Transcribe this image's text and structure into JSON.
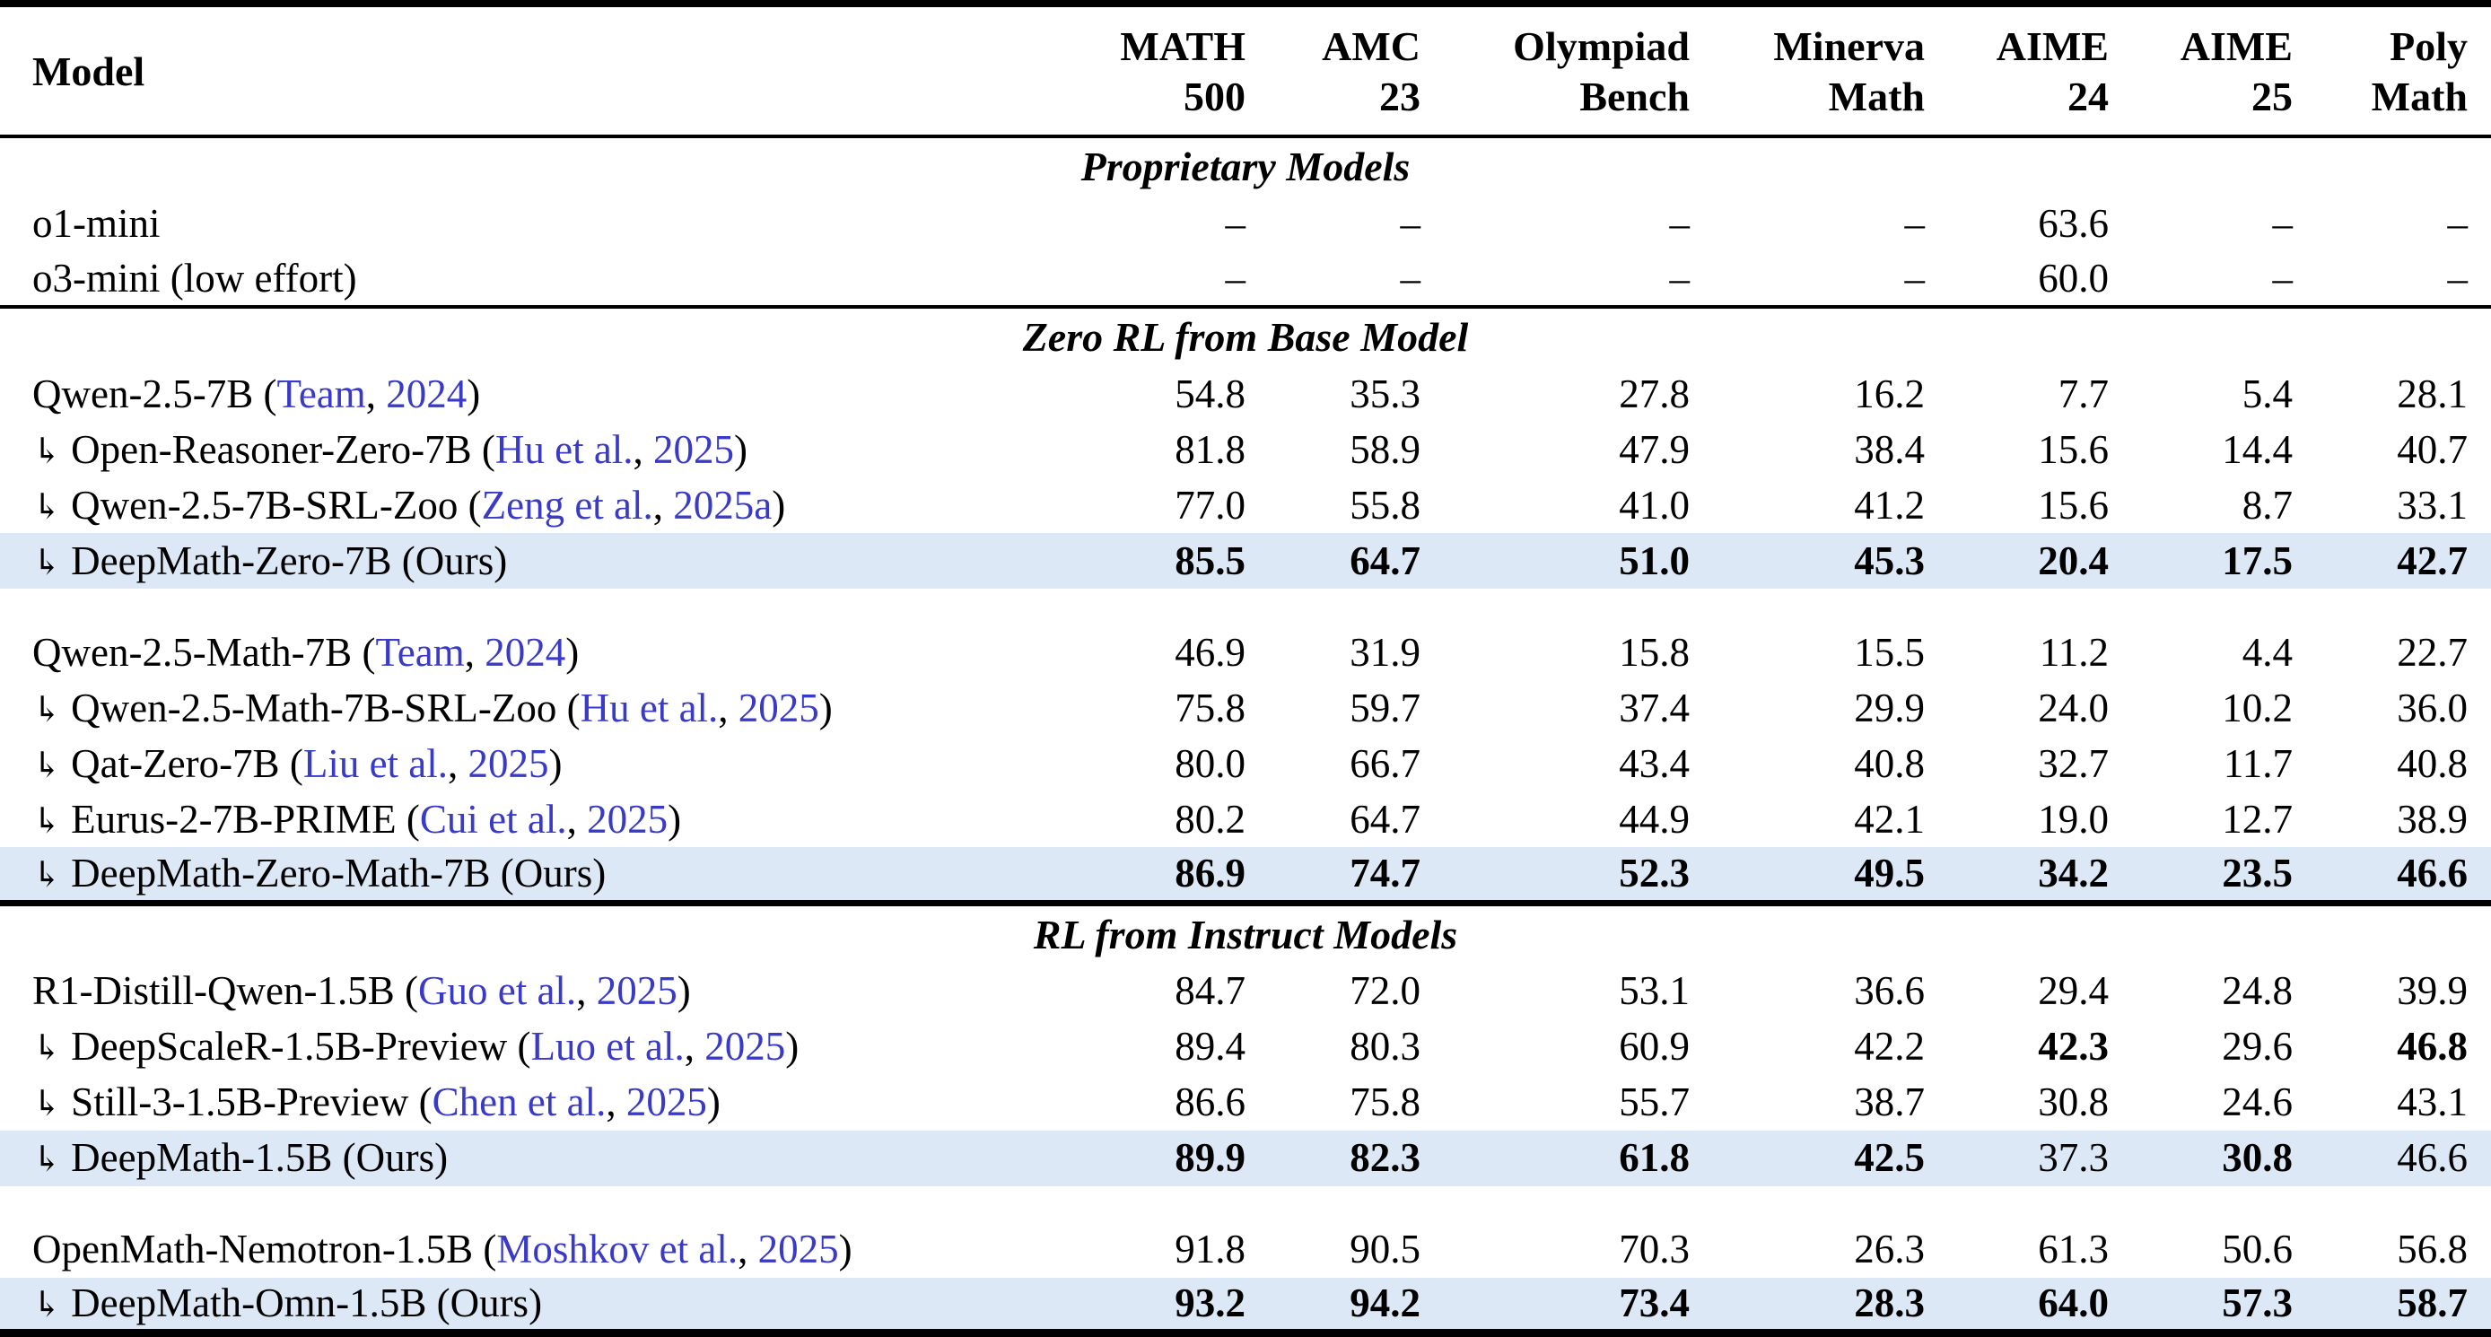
{
  "colors": {
    "highlight_row_bg": "#dce8f5",
    "citation_link": "#3a3ac8",
    "rule_color": "#000000"
  },
  "icons": {
    "branch_arrow": "↳"
  },
  "header": {
    "model_label": "Model",
    "benchmarks": [
      {
        "line1": "MATH",
        "line2": "500"
      },
      {
        "line1": "AMC",
        "line2": "23"
      },
      {
        "line1": "Olympiad",
        "line2": "Bench"
      },
      {
        "line1": "Minerva",
        "line2": "Math"
      },
      {
        "line1": "AIME",
        "line2": "24"
      },
      {
        "line1": "AIME",
        "line2": "25"
      },
      {
        "line1": "Poly",
        "line2": "Math"
      }
    ]
  },
  "sections": [
    {
      "title": "Proprietary Models",
      "groups": [
        {
          "rows": [
            {
              "model": "o1-mini",
              "arrow": false,
              "highlight": false,
              "scores": [
                "–",
                "–",
                "–",
                "–",
                "63.6",
                "–",
                "–"
              ],
              "bold": []
            },
            {
              "model": "o3-mini (low effort)",
              "arrow": false,
              "highlight": false,
              "scores": [
                "–",
                "–",
                "–",
                "–",
                "60.0",
                "–",
                "–"
              ],
              "bold": []
            }
          ]
        }
      ]
    },
    {
      "title": "Zero RL from Base Model",
      "groups": [
        {
          "rows": [
            {
              "model": "Qwen-2.5-7B",
              "cite": {
                "authors": "Team",
                "year": "2024"
              },
              "arrow": false,
              "highlight": false,
              "scores": [
                "54.8",
                "35.3",
                "27.8",
                "16.2",
                "7.7",
                "5.4",
                "28.1"
              ],
              "bold": []
            },
            {
              "model": "Open-Reasoner-Zero-7B",
              "cite": {
                "authors": "Hu et al.",
                "year": "2025"
              },
              "arrow": true,
              "highlight": false,
              "scores": [
                "81.8",
                "58.9",
                "47.9",
                "38.4",
                "15.6",
                "14.4",
                "40.7"
              ],
              "bold": []
            },
            {
              "model": "Qwen-2.5-7B-SRL-Zoo",
              "cite": {
                "authors": "Zeng et al.",
                "year": "2025a"
              },
              "arrow": true,
              "highlight": false,
              "scores": [
                "77.0",
                "55.8",
                "41.0",
                "41.2",
                "15.6",
                "8.7",
                "33.1"
              ],
              "bold": []
            },
            {
              "model": "DeepMath-Zero-7B",
              "suffix": "(Ours)",
              "arrow": true,
              "highlight": true,
              "scores": [
                "85.5",
                "64.7",
                "51.0",
                "45.3",
                "20.4",
                "17.5",
                "42.7"
              ],
              "bold": [
                0,
                1,
                2,
                3,
                4,
                5,
                6
              ]
            }
          ]
        },
        {
          "rows": [
            {
              "model": "Qwen-2.5-Math-7B",
              "cite": {
                "authors": "Team",
                "year": "2024"
              },
              "arrow": false,
              "highlight": false,
              "scores": [
                "46.9",
                "31.9",
                "15.8",
                "15.5",
                "11.2",
                "4.4",
                "22.7"
              ],
              "bold": []
            },
            {
              "model": "Qwen-2.5-Math-7B-SRL-Zoo",
              "cite": {
                "authors": "Hu et al.",
                "year": "2025"
              },
              "arrow": true,
              "highlight": false,
              "scores": [
                "75.8",
                "59.7",
                "37.4",
                "29.9",
                "24.0",
                "10.2",
                "36.0"
              ],
              "bold": []
            },
            {
              "model": "Qat-Zero-7B",
              "cite": {
                "authors": "Liu et al.",
                "year": "2025"
              },
              "arrow": true,
              "highlight": false,
              "scores": [
                "80.0",
                "66.7",
                "43.4",
                "40.8",
                "32.7",
                "11.7",
                "40.8"
              ],
              "bold": []
            },
            {
              "model": "Eurus-2-7B-PRIME",
              "cite": {
                "authors": "Cui et al.",
                "year": "2025"
              },
              "arrow": true,
              "highlight": false,
              "scores": [
                "80.2",
                "64.7",
                "44.9",
                "42.1",
                "19.0",
                "12.7",
                "38.9"
              ],
              "bold": []
            },
            {
              "model": "DeepMath-Zero-Math-7B",
              "suffix": "(Ours)",
              "arrow": true,
              "highlight": true,
              "scores": [
                "86.9",
                "74.7",
                "52.3",
                "49.5",
                "34.2",
                "23.5",
                "46.6"
              ],
              "bold": [
                0,
                1,
                2,
                3,
                4,
                5,
                6
              ]
            }
          ]
        }
      ]
    },
    {
      "title": "RL from Instruct Models",
      "groups": [
        {
          "rows": [
            {
              "model": "R1-Distill-Qwen-1.5B",
              "cite": {
                "authors": "Guo et al.",
                "year": "2025"
              },
              "arrow": false,
              "highlight": false,
              "scores": [
                "84.7",
                "72.0",
                "53.1",
                "36.6",
                "29.4",
                "24.8",
                "39.9"
              ],
              "bold": []
            },
            {
              "model": "DeepScaleR-1.5B-Preview",
              "cite": {
                "authors": "Luo et al.",
                "year": "2025"
              },
              "arrow": true,
              "highlight": false,
              "scores": [
                "89.4",
                "80.3",
                "60.9",
                "42.2",
                "42.3",
                "29.6",
                "46.8"
              ],
              "bold": [
                4,
                6
              ]
            },
            {
              "model": "Still-3-1.5B-Preview",
              "cite": {
                "authors": "Chen et al.",
                "year": "2025"
              },
              "arrow": true,
              "highlight": false,
              "scores": [
                "86.6",
                "75.8",
                "55.7",
                "38.7",
                "30.8",
                "24.6",
                "43.1"
              ],
              "bold": []
            },
            {
              "model": "DeepMath-1.5B",
              "suffix": "(Ours)",
              "arrow": true,
              "highlight": true,
              "scores": [
                "89.9",
                "82.3",
                "61.8",
                "42.5",
                "37.3",
                "30.8",
                "46.6"
              ],
              "bold": [
                0,
                1,
                2,
                3,
                5
              ]
            }
          ]
        },
        {
          "rows": [
            {
              "model": "OpenMath-Nemotron-1.5B",
              "cite": {
                "authors": "Moshkov et al.",
                "year": "2025"
              },
              "arrow": false,
              "highlight": false,
              "scores": [
                "91.8",
                "90.5",
                "70.3",
                "26.3",
                "61.3",
                "50.6",
                "56.8"
              ],
              "bold": []
            },
            {
              "model": "DeepMath-Omn-1.5B",
              "suffix": "(Ours)",
              "arrow": true,
              "highlight": true,
              "scores": [
                "93.2",
                "94.2",
                "73.4",
                "28.3",
                "64.0",
                "57.3",
                "58.7"
              ],
              "bold": [
                0,
                1,
                2,
                3,
                4,
                5,
                6
              ]
            }
          ]
        }
      ]
    }
  ]
}
